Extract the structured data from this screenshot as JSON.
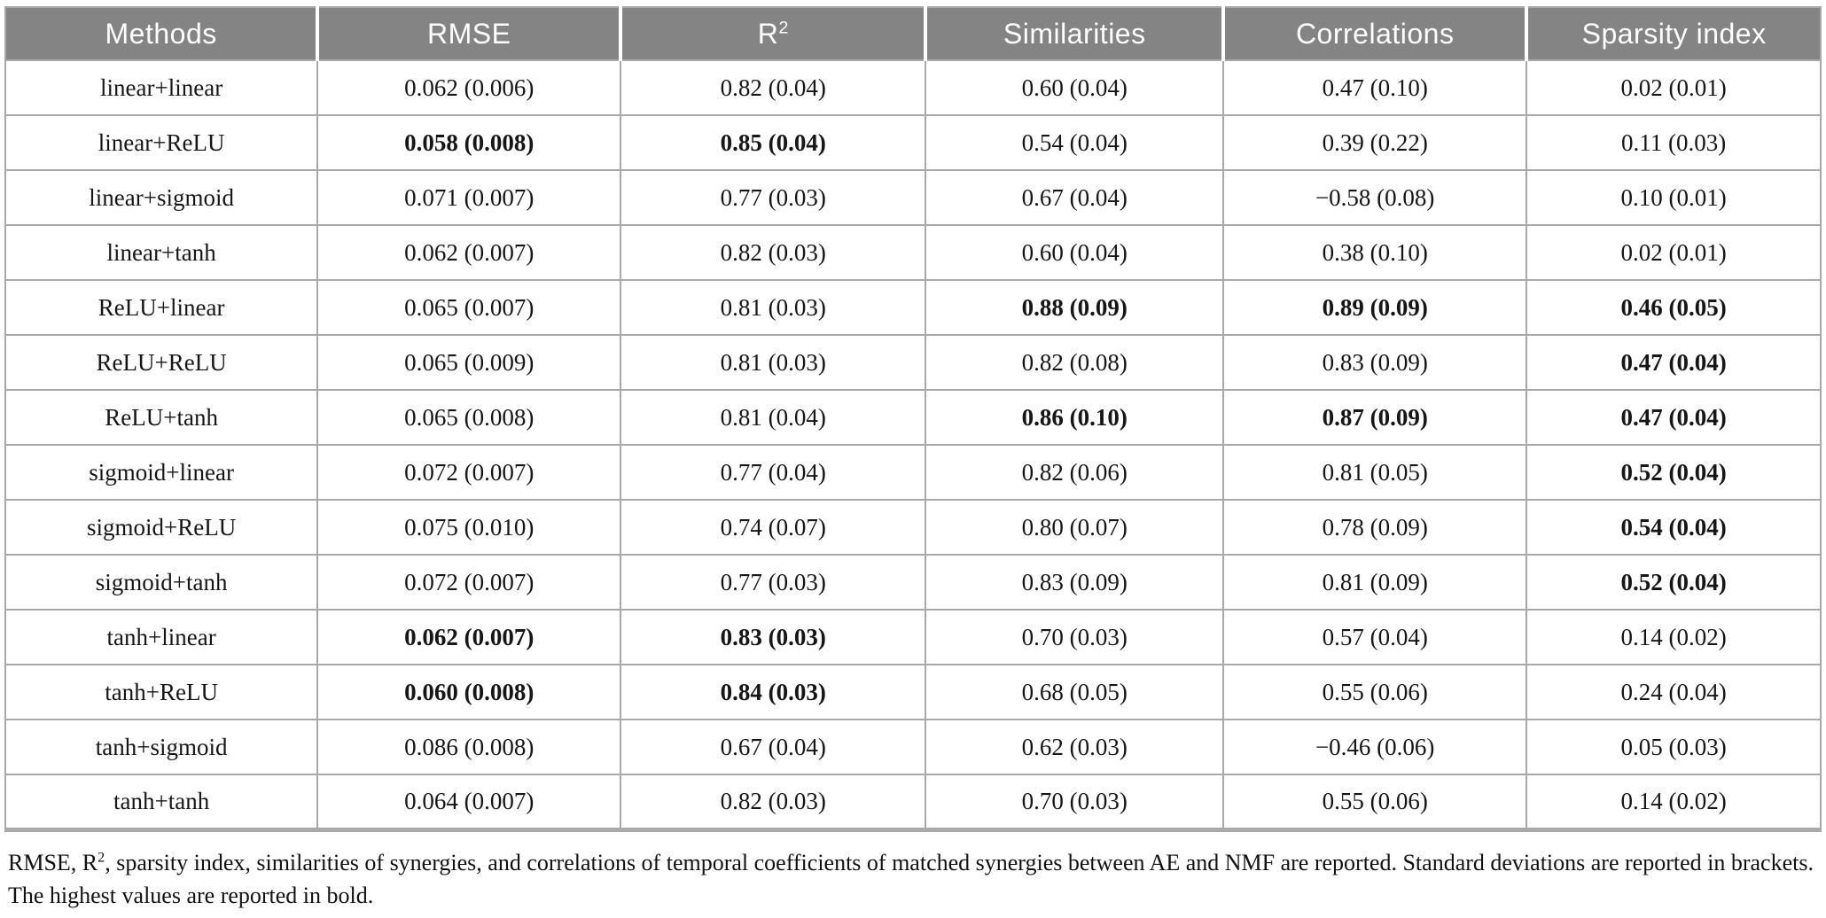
{
  "colors": {
    "header_bg": "#848484",
    "header_text": "#ffffff",
    "border": "#a9a9a9",
    "body_text": "#161616"
  },
  "table": {
    "header": {
      "methods": "Methods",
      "rmse": "RMSE",
      "r2_base": "R",
      "r2_sup": "2",
      "similarities": "Similarities",
      "correlations": "Correlations",
      "sparsity": "Sparsity index"
    },
    "rows": [
      {
        "method": "linear+linear",
        "cells": [
          {
            "text": "0.062 (0.006)",
            "bold": false
          },
          {
            "text": "0.82 (0.04)",
            "bold": false
          },
          {
            "text": "0.60 (0.04)",
            "bold": false
          },
          {
            "text": "0.47 (0.10)",
            "bold": false
          },
          {
            "text": "0.02 (0.01)",
            "bold": false
          }
        ]
      },
      {
        "method": "linear+ReLU",
        "cells": [
          {
            "text": "0.058 (0.008)",
            "bold": true
          },
          {
            "text": "0.85 (0.04)",
            "bold": true
          },
          {
            "text": "0.54 (0.04)",
            "bold": false
          },
          {
            "text": "0.39 (0.22)",
            "bold": false
          },
          {
            "text": "0.11 (0.03)",
            "bold": false
          }
        ]
      },
      {
        "method": "linear+sigmoid",
        "cells": [
          {
            "text": "0.071 (0.007)",
            "bold": false
          },
          {
            "text": "0.77 (0.03)",
            "bold": false
          },
          {
            "text": "0.67 (0.04)",
            "bold": false
          },
          {
            "text": "−0.58 (0.08)",
            "bold": false
          },
          {
            "text": "0.10 (0.01)",
            "bold": false
          }
        ]
      },
      {
        "method": "linear+tanh",
        "cells": [
          {
            "text": "0.062 (0.007)",
            "bold": false
          },
          {
            "text": "0.82 (0.03)",
            "bold": false
          },
          {
            "text": "0.60 (0.04)",
            "bold": false
          },
          {
            "text": "0.38 (0.10)",
            "bold": false
          },
          {
            "text": "0.02 (0.01)",
            "bold": false
          }
        ]
      },
      {
        "method": "ReLU+linear",
        "cells": [
          {
            "text": "0.065 (0.007)",
            "bold": false
          },
          {
            "text": "0.81 (0.03)",
            "bold": false
          },
          {
            "text": "0.88 (0.09)",
            "bold": true
          },
          {
            "text": "0.89 (0.09)",
            "bold": true
          },
          {
            "text": "0.46 (0.05)",
            "bold": true
          }
        ]
      },
      {
        "method": "ReLU+ReLU",
        "cells": [
          {
            "text": "0.065 (0.009)",
            "bold": false
          },
          {
            "text": "0.81 (0.03)",
            "bold": false
          },
          {
            "text": "0.82 (0.08)",
            "bold": false
          },
          {
            "text": "0.83 (0.09)",
            "bold": false
          },
          {
            "text": "0.47 (0.04)",
            "bold": true
          }
        ]
      },
      {
        "method": "ReLU+tanh",
        "cells": [
          {
            "text": "0.065 (0.008)",
            "bold": false
          },
          {
            "text": "0.81 (0.04)",
            "bold": false
          },
          {
            "text": "0.86 (0.10)",
            "bold": true
          },
          {
            "text": "0.87 (0.09)",
            "bold": true
          },
          {
            "text": "0.47 (0.04)",
            "bold": true
          }
        ]
      },
      {
        "method": "sigmoid+linear",
        "cells": [
          {
            "text": "0.072 (0.007)",
            "bold": false
          },
          {
            "text": "0.77 (0.04)",
            "bold": false
          },
          {
            "text": "0.82 (0.06)",
            "bold": false
          },
          {
            "text": "0.81 (0.05)",
            "bold": false
          },
          {
            "text": "0.52 (0.04)",
            "bold": true
          }
        ]
      },
      {
        "method": "sigmoid+ReLU",
        "cells": [
          {
            "text": "0.075 (0.010)",
            "bold": false
          },
          {
            "text": "0.74 (0.07)",
            "bold": false
          },
          {
            "text": "0.80 (0.07)",
            "bold": false
          },
          {
            "text": "0.78 (0.09)",
            "bold": false
          },
          {
            "text": "0.54 (0.04)",
            "bold": true
          }
        ]
      },
      {
        "method": "sigmoid+tanh",
        "cells": [
          {
            "text": "0.072 (0.007)",
            "bold": false
          },
          {
            "text": "0.77 (0.03)",
            "bold": false
          },
          {
            "text": "0.83 (0.09)",
            "bold": false
          },
          {
            "text": "0.81 (0.09)",
            "bold": false
          },
          {
            "text": "0.52 (0.04)",
            "bold": true
          }
        ]
      },
      {
        "method": "tanh+linear",
        "cells": [
          {
            "text": "0.062 (0.007)",
            "bold": true
          },
          {
            "text": "0.83 (0.03)",
            "bold": true
          },
          {
            "text": "0.70 (0.03)",
            "bold": false
          },
          {
            "text": "0.57 (0.04)",
            "bold": false
          },
          {
            "text": "0.14 (0.02)",
            "bold": false
          }
        ]
      },
      {
        "method": "tanh+ReLU",
        "cells": [
          {
            "text": "0.060 (0.008)",
            "bold": true
          },
          {
            "text": "0.84 (0.03)",
            "bold": true
          },
          {
            "text": "0.68 (0.05)",
            "bold": false
          },
          {
            "text": "0.55 (0.06)",
            "bold": false
          },
          {
            "text": "0.24 (0.04)",
            "bold": false
          }
        ]
      },
      {
        "method": "tanh+sigmoid",
        "cells": [
          {
            "text": "0.086 (0.008)",
            "bold": false
          },
          {
            "text": "0.67 (0.04)",
            "bold": false
          },
          {
            "text": "0.62 (0.03)",
            "bold": false
          },
          {
            "text": "−0.46 (0.06)",
            "bold": false
          },
          {
            "text": "0.05 (0.03)",
            "bold": false
          }
        ]
      },
      {
        "method": "tanh+tanh",
        "cells": [
          {
            "text": "0.064 (0.007)",
            "bold": false
          },
          {
            "text": "0.82 (0.03)",
            "bold": false
          },
          {
            "text": "0.70 (0.03)",
            "bold": false
          },
          {
            "text": "0.55 (0.06)",
            "bold": false
          },
          {
            "text": "0.14 (0.02)",
            "bold": false
          }
        ]
      }
    ]
  },
  "footnote": {
    "part1": "RMSE, R",
    "sup": "2",
    "part2": ", sparsity index, similarities of synergies, and correlations of temporal coefficients of matched synergies between AE and NMF are reported. Standard deviations are reported in brackets. The highest values are reported in bold."
  }
}
